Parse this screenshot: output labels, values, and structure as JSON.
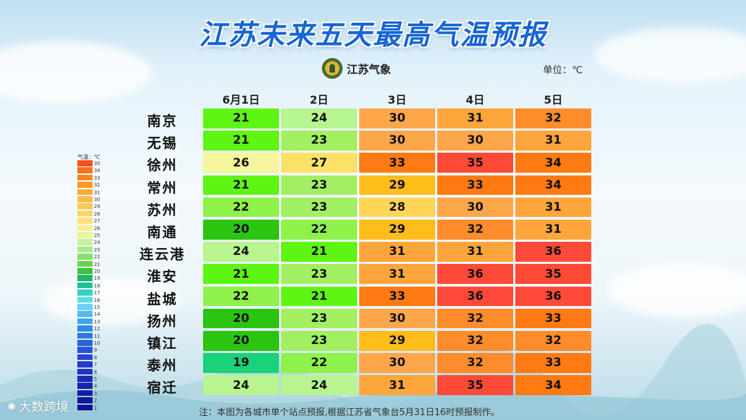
{
  "title": "江苏未来五天最高气温预报",
  "logo_text": "江苏气象",
  "unit_label": "单位：℃",
  "note": "注：本图为各城市单个站点预报,根据江苏省气象台5月31日16时预报制作。",
  "watermark": "大数跨境",
  "legend": {
    "title": "气温：℃",
    "labels": [
      "35",
      "34",
      "33",
      "32",
      "31",
      "30",
      "29",
      "28",
      "27",
      "26",
      "25",
      "24",
      "23",
      "22",
      "21",
      "20",
      "19",
      "18",
      "17",
      "16",
      "15",
      "14",
      "13",
      "12",
      "11",
      "10",
      "9",
      "8",
      "7",
      "6",
      "5",
      "4",
      "3",
      "2",
      "1"
    ]
  },
  "colors": {
    "19": "#19d37a",
    "20": "#2ac411",
    "21": "#5ef515",
    "22": "#8ef24a",
    "23": "#a2ef62",
    "24": "#b6f590",
    "26": "#f6f59b",
    "27": "#fde068",
    "28": "#ffd65a",
    "29": "#ffbd1c",
    "30": "#fea64a",
    "31": "#fea53b",
    "32": "#fe8c2a",
    "33": "#ff7a12",
    "34": "#ff7a12",
    "35": "#ff4a36",
    "36": "#ff4a3a"
  },
  "legend_colors": [
    "#f4511e",
    "#fb6f1f",
    "#fb841f",
    "#fc9a29",
    "#fcaa3a",
    "#fdbb4a",
    "#fdc857",
    "#fed466",
    "#fde07a",
    "#fbee8c",
    "#e9f59a",
    "#c9f09c",
    "#a8eb84",
    "#86e36a",
    "#5fd64e",
    "#39c43a",
    "#22b56a",
    "#1fc39a",
    "#2fd4c4",
    "#55dfe6",
    "#6fd0f4",
    "#56b9f0",
    "#3ea3ec",
    "#2d8ce8",
    "#2a78e4",
    "#2a63de",
    "#2a52d8",
    "#2a44d0",
    "#2838c8",
    "#2330c0",
    "#1e28b8",
    "#1a22b0",
    "#161ca8",
    "#1216a0",
    "#0e1098"
  ],
  "chart_data": {
    "type": "table",
    "title": "江苏未来五天最高气温预报",
    "unit": "℃",
    "columns": [
      "6月1日",
      "2日",
      "3日",
      "4日",
      "5日"
    ],
    "rows": [
      {
        "city": "南京",
        "values": [
          21,
          24,
          30,
          31,
          32
        ]
      },
      {
        "city": "无锡",
        "values": [
          21,
          23,
          30,
          30,
          31
        ]
      },
      {
        "city": "徐州",
        "values": [
          26,
          27,
          33,
          35,
          34
        ]
      },
      {
        "city": "常州",
        "values": [
          21,
          23,
          29,
          33,
          34
        ]
      },
      {
        "city": "苏州",
        "values": [
          22,
          23,
          28,
          30,
          31
        ]
      },
      {
        "city": "南通",
        "values": [
          20,
          22,
          29,
          32,
          31
        ]
      },
      {
        "city": "连云港",
        "values": [
          24,
          21,
          31,
          31,
          36
        ]
      },
      {
        "city": "淮安",
        "values": [
          21,
          23,
          31,
          36,
          35
        ]
      },
      {
        "city": "盐城",
        "values": [
          22,
          21,
          33,
          36,
          36
        ]
      },
      {
        "city": "扬州",
        "values": [
          20,
          23,
          30,
          32,
          33
        ]
      },
      {
        "city": "镇江",
        "values": [
          20,
          23,
          29,
          32,
          32
        ]
      },
      {
        "city": "泰州",
        "values": [
          19,
          22,
          30,
          32,
          33
        ]
      },
      {
        "city": "宿迁",
        "values": [
          24,
          24,
          31,
          35,
          34
        ]
      }
    ]
  }
}
